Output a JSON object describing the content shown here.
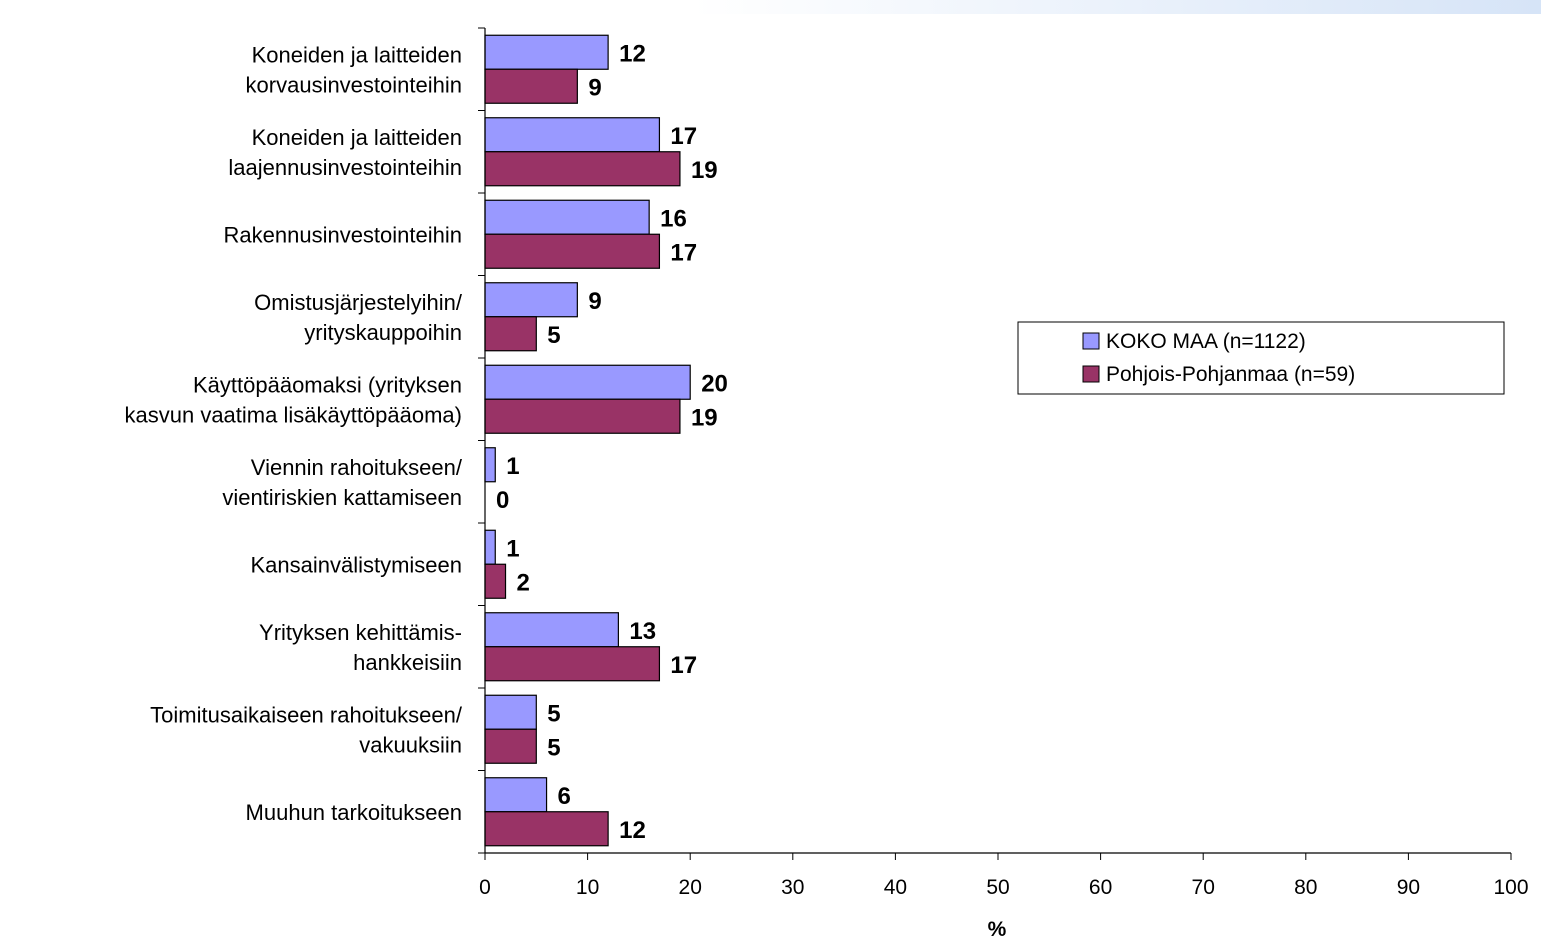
{
  "chart_data": {
    "type": "bar",
    "orientation": "horizontal",
    "categories": [
      [
        "Koneiden ja laitteiden",
        "korvausinvestointeihin"
      ],
      [
        "Koneiden ja laitteiden",
        "laajennusinvestointeihin"
      ],
      [
        "Rakennusinvestointeihin"
      ],
      [
        "Omistusjärjestelyihin/",
        "yrityskauppoihin"
      ],
      [
        "Käyttöpääomaksi (yrityksen",
        "kasvun vaatima lisäkäyttöpääoma)"
      ],
      [
        "Viennin rahoitukseen/",
        "vientiriskien kattamiseen"
      ],
      [
        "Kansainvälistymiseen"
      ],
      [
        "Yrityksen kehittämis-",
        "hankkeisiin"
      ],
      [
        "Toimitusaikaiseen rahoitukseen/",
        "vakuuksiin"
      ],
      [
        "Muuhun tarkoitukseen"
      ]
    ],
    "series": [
      {
        "name": "KOKO MAA (n=1122)",
        "color": "#9999ff",
        "values": [
          12,
          17,
          16,
          9,
          20,
          1,
          1,
          13,
          5,
          6
        ]
      },
      {
        "name": "Pohjois-Pohjanmaa (n=59)",
        "color": "#993366",
        "values": [
          9,
          19,
          17,
          5,
          19,
          0,
          2,
          17,
          5,
          12
        ]
      }
    ],
    "xlabel": "%",
    "xlim": [
      0,
      100
    ],
    "xticks": [
      0,
      10,
      20,
      30,
      40,
      50,
      60,
      70,
      80,
      90,
      100
    ],
    "grid": false,
    "legend_position": "right"
  }
}
